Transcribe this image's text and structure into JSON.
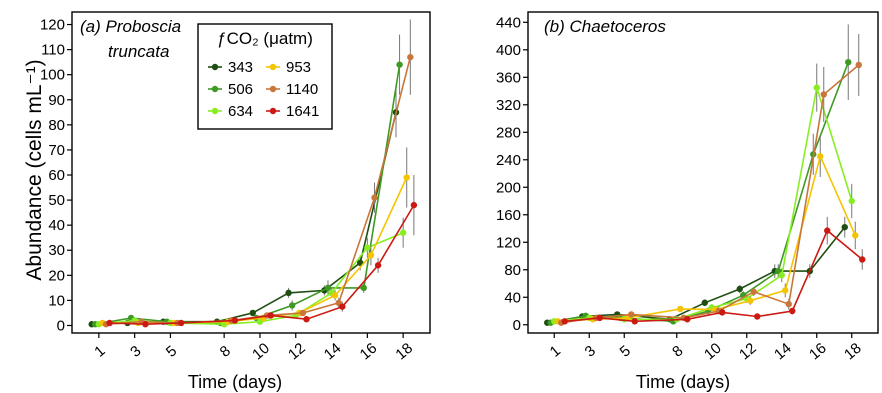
{
  "y_axis_label": "Abundance (cells mL⁻¹)",
  "legend": {
    "title": "ƒCO₂ (μatm)",
    "entries": [
      {
        "label": "343",
        "color": "#1f4e12"
      },
      {
        "label": "953",
        "color": "#f5c400"
      },
      {
        "label": "506",
        "color": "#3f9a25"
      },
      {
        "label": "1140",
        "color": "#c8763a"
      },
      {
        "label": "634",
        "color": "#88ee22"
      },
      {
        "label": "1641",
        "color": "#cc1a12"
      }
    ]
  },
  "chart_data": [
    {
      "type": "line",
      "title_line1": "(a) Proboscia",
      "title_line2": "truncata",
      "xlabel": "Time (days)",
      "ylabel": "Abundance (cells mL⁻¹)",
      "x_ticks": [
        1,
        3,
        5,
        8,
        10,
        12,
        14,
        16,
        18
      ],
      "xlim": [
        -0.5,
        19.5
      ],
      "y_ticks": [
        0,
        10,
        20,
        30,
        40,
        50,
        60,
        70,
        80,
        90,
        100,
        110,
        120
      ],
      "ylim": [
        -3,
        125
      ],
      "grid": false,
      "legend_position": "top-center",
      "series": [
        {
          "name": "343",
          "color": "#1f4e12",
          "x": [
            0.6,
            2.6,
            4.6,
            7.6,
            9.6,
            11.6,
            13.6,
            15.6,
            17.6
          ],
          "y": [
            0.5,
            1,
            1.5,
            1.5,
            5,
            13,
            14,
            25,
            85
          ],
          "err": [
            0.5,
            0.5,
            0.5,
            0.5,
            1,
            2,
            2,
            3,
            10
          ]
        },
        {
          "name": "506",
          "color": "#3f9a25",
          "x": [
            0.8,
            2.8,
            4.8,
            7.8,
            9.8,
            11.8,
            13.8,
            15.8,
            17.8
          ],
          "y": [
            0.5,
            3,
            1.5,
            1,
            3,
            8,
            15,
            15,
            104
          ],
          "err": [
            0.5,
            0.5,
            0.5,
            0.5,
            1,
            2,
            3,
            2,
            12
          ]
        },
        {
          "name": "634",
          "color": "#88ee22",
          "x": [
            1.0,
            3.0,
            5.0,
            8.0,
            10.0,
            12.0,
            14.0,
            16.0,
            18.0
          ],
          "y": [
            0.5,
            2,
            1,
            0.5,
            1.5,
            4,
            13,
            31,
            37
          ],
          "err": [
            0.5,
            0.5,
            0.5,
            0.5,
            0.5,
            1,
            2,
            4,
            6
          ]
        },
        {
          "name": "953",
          "color": "#f5c400",
          "x": [
            1.2,
            3.2,
            5.2,
            8.2,
            10.2,
            12.2,
            14.2,
            16.2,
            18.2
          ],
          "y": [
            1,
            1,
            1,
            1.5,
            3,
            5,
            12,
            28,
            59
          ],
          "err": [
            0.5,
            0.5,
            0.5,
            0.5,
            1,
            1,
            2,
            4,
            12
          ]
        },
        {
          "name": "1140",
          "color": "#c8763a",
          "x": [
            1.4,
            3.4,
            5.4,
            8.4,
            10.4,
            12.4,
            14.4,
            16.4,
            18.4
          ],
          "y": [
            0.5,
            1.5,
            1,
            2,
            4,
            5,
            9,
            51,
            107
          ],
          "err": [
            0.5,
            0.5,
            0.5,
            0.5,
            1,
            1,
            2,
            6,
            15
          ]
        },
        {
          "name": "1641",
          "color": "#cc1a12",
          "x": [
            1.6,
            3.6,
            5.6,
            8.6,
            10.6,
            12.6,
            14.6,
            16.6,
            18.6
          ],
          "y": [
            1,
            0.5,
            1,
            2,
            4,
            2.5,
            7.5,
            24,
            48
          ],
          "err": [
            0.5,
            0.5,
            0.5,
            0.5,
            1,
            1,
            2,
            3,
            12
          ]
        }
      ]
    },
    {
      "type": "line",
      "title_line1": "(b) Chaetoceros",
      "title_line2": "",
      "xlabel": "Time (days)",
      "ylabel": "",
      "x_ticks": [
        1,
        3,
        5,
        8,
        10,
        12,
        14,
        16,
        18
      ],
      "xlim": [
        -0.5,
        19.5
      ],
      "y_ticks": [
        0,
        40,
        80,
        120,
        160,
        200,
        240,
        280,
        320,
        360,
        400,
        440
      ],
      "ylim": [
        -12,
        455
      ],
      "grid": false,
      "legend_position": "none",
      "series": [
        {
          "name": "343",
          "color": "#1f4e12",
          "x": [
            0.6,
            2.6,
            4.6,
            7.6,
            9.6,
            11.6,
            13.6,
            15.6,
            17.6
          ],
          "y": [
            3,
            12,
            15,
            8,
            32,
            52,
            78,
            78,
            142
          ],
          "err": [
            2,
            3,
            3,
            3,
            5,
            6,
            10,
            10,
            15
          ]
        },
        {
          "name": "506",
          "color": "#3f9a25",
          "x": [
            0.8,
            2.8,
            4.8,
            7.8,
            9.8,
            11.8,
            13.8,
            15.8,
            17.8
          ],
          "y": [
            3,
            13,
            10,
            5,
            20,
            43,
            78,
            248,
            382
          ],
          "err": [
            2,
            3,
            3,
            2,
            5,
            6,
            10,
            30,
            55
          ]
        },
        {
          "name": "634",
          "color": "#88ee22",
          "x": [
            1.0,
            3.0,
            5.0,
            8.0,
            10.0,
            12.0,
            14.0,
            16.0,
            18.0
          ],
          "y": [
            5,
            10,
            8,
            8,
            25,
            38,
            72,
            345,
            180
          ],
          "err": [
            2,
            3,
            3,
            3,
            5,
            6,
            10,
            35,
            25
          ]
        },
        {
          "name": "953",
          "color": "#f5c400",
          "x": [
            1.2,
            3.2,
            5.2,
            8.2,
            10.2,
            12.2,
            14.2,
            16.2,
            18.2
          ],
          "y": [
            5,
            8,
            10,
            23,
            22,
            35,
            50,
            245,
            130
          ],
          "err": [
            2,
            3,
            3,
            4,
            5,
            6,
            10,
            30,
            20
          ]
        },
        {
          "name": "1140",
          "color": "#c8763a",
          "x": [
            1.4,
            3.4,
            5.4,
            8.4,
            10.4,
            12.4,
            14.4,
            16.4,
            18.4
          ],
          "y": [
            3,
            10,
            15,
            10,
            20,
            48,
            30,
            335,
            378
          ],
          "err": [
            2,
            3,
            3,
            3,
            5,
            6,
            8,
            40,
            45
          ]
        },
        {
          "name": "1641",
          "color": "#cc1a12",
          "x": [
            1.6,
            3.6,
            5.6,
            8.6,
            10.6,
            12.6,
            14.6,
            16.6,
            18.6
          ],
          "y": [
            5,
            10,
            5,
            8,
            18,
            12,
            20,
            137,
            95
          ],
          "err": [
            2,
            3,
            2,
            3,
            4,
            3,
            5,
            20,
            15
          ]
        }
      ]
    }
  ]
}
